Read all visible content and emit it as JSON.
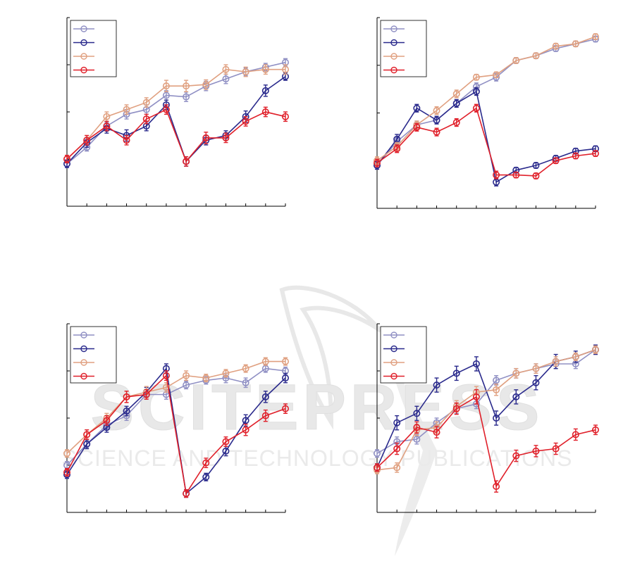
{
  "watermark": {
    "line1": "SCITEPRESS",
    "line2": "SCIENCE AND TECHNOLOGY PUBLICATIONS"
  },
  "colors": {
    "series1": "#9090c4",
    "series2": "#2a2a8c",
    "series3": "#e0a080",
    "series4": "#e0202a",
    "axis": "#000000",
    "watermark": "#e6e6e6"
  },
  "chart_data": [
    {
      "type": "line",
      "panel": "top-left",
      "title": "",
      "xlabel": "",
      "ylabel": "",
      "x": [
        0,
        1,
        2,
        3,
        4,
        5,
        6,
        7,
        8,
        9,
        10,
        11
      ],
      "xlim": [
        0,
        11
      ],
      "ylim": [
        0,
        4
      ],
      "grid": false,
      "legend": "top-left",
      "series": [
        {
          "values": [
            0.9,
            1.25,
            1.7,
            1.95,
            2.05,
            2.35,
            2.32,
            2.55,
            2.7,
            2.85,
            2.95,
            3.05
          ],
          "err": [
            0.08,
            0.08,
            0.08,
            0.1,
            0.1,
            0.1,
            0.1,
            0.1,
            0.1,
            0.08,
            0.08,
            0.08
          ]
        },
        {
          "values": [
            0.9,
            1.35,
            1.65,
            1.5,
            1.7,
            2.15,
            0.95,
            1.4,
            1.5,
            1.9,
            2.45,
            2.75
          ],
          "err": [
            0.08,
            0.1,
            0.1,
            0.12,
            0.1,
            0.1,
            0.1,
            0.1,
            0.1,
            0.12,
            0.12,
            0.08
          ]
        },
        {
          "values": [
            1.0,
            1.4,
            1.9,
            2.05,
            2.2,
            2.55,
            2.55,
            2.58,
            2.9,
            2.85,
            2.9,
            2.9
          ],
          "err": [
            0.08,
            0.1,
            0.1,
            0.1,
            0.1,
            0.12,
            0.12,
            0.1,
            0.1,
            0.1,
            0.1,
            0.1
          ]
        },
        {
          "values": [
            1.0,
            1.4,
            1.7,
            1.4,
            1.85,
            2.05,
            0.95,
            1.45,
            1.45,
            1.8,
            2.0,
            1.9
          ],
          "err": [
            0.08,
            0.1,
            0.1,
            0.1,
            0.1,
            0.1,
            0.1,
            0.12,
            0.1,
            0.1,
            0.1,
            0.1
          ]
        }
      ]
    },
    {
      "type": "line",
      "panel": "top-right",
      "title": "",
      "xlabel": "",
      "ylabel": "",
      "x": [
        0,
        1,
        2,
        3,
        4,
        5,
        6,
        7,
        8,
        9,
        10,
        11
      ],
      "xlim": [
        0,
        11
      ],
      "ylim": [
        0,
        4
      ],
      "grid": false,
      "legend": "top-left",
      "series": [
        {
          "values": [
            0.9,
            1.4,
            1.75,
            1.85,
            2.2,
            2.55,
            2.75,
            3.1,
            3.2,
            3.35,
            3.45,
            3.55
          ],
          "err": [
            0.08,
            0.08,
            0.08,
            0.08,
            0.08,
            0.08,
            0.08,
            0.06,
            0.06,
            0.06,
            0.06,
            0.06
          ]
        },
        {
          "values": [
            0.9,
            1.45,
            2.1,
            1.85,
            2.2,
            2.45,
            0.55,
            0.8,
            0.9,
            1.05,
            1.2,
            1.25
          ],
          "err": [
            0.08,
            0.1,
            0.08,
            0.08,
            0.08,
            0.08,
            0.08,
            0.06,
            0.06,
            0.06,
            0.06,
            0.06
          ]
        },
        {
          "values": [
            1.0,
            1.3,
            1.75,
            2.05,
            2.4,
            2.75,
            2.8,
            3.1,
            3.2,
            3.4,
            3.45,
            3.6
          ],
          "err": [
            0.08,
            0.08,
            0.08,
            0.08,
            0.08,
            0.06,
            0.06,
            0.06,
            0.06,
            0.06,
            0.06,
            0.06
          ]
        },
        {
          "values": [
            0.95,
            1.25,
            1.7,
            1.6,
            1.8,
            2.1,
            0.7,
            0.7,
            0.68,
            1.0,
            1.1,
            1.15
          ],
          "err": [
            0.08,
            0.08,
            0.08,
            0.08,
            0.08,
            0.08,
            0.08,
            0.06,
            0.06,
            0.06,
            0.06,
            0.06
          ]
        }
      ]
    },
    {
      "type": "line",
      "panel": "bottom-left",
      "title": "",
      "xlabel": "",
      "ylabel": "",
      "x": [
        0,
        1,
        2,
        3,
        4,
        5,
        6,
        7,
        8,
        9,
        10,
        11
      ],
      "xlim": [
        0,
        11
      ],
      "ylim": [
        0,
        4
      ],
      "grid": false,
      "legend": "top-left",
      "series": [
        {
          "values": [
            1.0,
            1.45,
            1.85,
            2.05,
            2.5,
            2.5,
            2.7,
            2.8,
            2.85,
            2.75,
            3.05,
            3.0
          ],
          "err": [
            0.08,
            0.08,
            0.08,
            0.1,
            0.1,
            0.1,
            0.08,
            0.08,
            0.1,
            0.1,
            0.08,
            0.08
          ]
        },
        {
          "values": [
            0.8,
            1.45,
            1.8,
            2.15,
            2.55,
            3.05,
            0.4,
            0.75,
            1.3,
            1.95,
            2.45,
            2.85
          ],
          "err": [
            0.08,
            0.1,
            0.1,
            0.1,
            0.1,
            0.1,
            0.08,
            0.08,
            0.1,
            0.12,
            0.12,
            0.1
          ]
        },
        {
          "values": [
            1.25,
            1.65,
            2.0,
            2.45,
            2.55,
            2.65,
            2.9,
            2.85,
            2.95,
            3.05,
            3.2,
            3.2
          ],
          "err": [
            0.08,
            0.1,
            0.1,
            0.12,
            0.12,
            0.1,
            0.1,
            0.08,
            0.08,
            0.08,
            0.08,
            0.08
          ]
        },
        {
          "values": [
            0.85,
            1.65,
            1.95,
            2.45,
            2.5,
            2.9,
            0.4,
            1.05,
            1.5,
            1.75,
            2.05,
            2.2
          ],
          "err": [
            0.08,
            0.1,
            0.1,
            0.12,
            0.1,
            0.1,
            0.08,
            0.1,
            0.1,
            0.12,
            0.12,
            0.1
          ]
        }
      ]
    },
    {
      "type": "line",
      "panel": "bottom-right",
      "title": "",
      "xlabel": "",
      "ylabel": "",
      "x": [
        0,
        1,
        2,
        3,
        4,
        5,
        6,
        7,
        8,
        9,
        10,
        11
      ],
      "xlim": [
        0,
        11
      ],
      "ylim": [
        0,
        4
      ],
      "grid": false,
      "legend": "top-left",
      "series": [
        {
          "values": [
            1.25,
            1.5,
            1.55,
            1.9,
            2.2,
            2.3,
            2.8,
            2.95,
            3.05,
            3.15,
            3.15,
            3.45
          ],
          "err": [
            0.08,
            0.1,
            0.1,
            0.1,
            0.1,
            0.1,
            0.1,
            0.1,
            0.1,
            0.1,
            0.1,
            0.08
          ]
        },
        {
          "values": [
            0.95,
            1.9,
            2.1,
            2.7,
            2.95,
            3.15,
            2.0,
            2.45,
            2.75,
            3.2,
            3.3,
            3.45
          ],
          "err": [
            0.08,
            0.15,
            0.15,
            0.15,
            0.15,
            0.15,
            0.15,
            0.15,
            0.15,
            0.15,
            0.12,
            0.1
          ]
        },
        {
          "values": [
            0.9,
            0.95,
            1.75,
            1.8,
            2.25,
            2.55,
            2.6,
            2.95,
            3.05,
            3.2,
            3.3,
            3.45
          ],
          "err": [
            0.08,
            0.1,
            0.12,
            0.12,
            0.12,
            0.12,
            0.12,
            0.1,
            0.1,
            0.1,
            0.08,
            0.08
          ]
        },
        {
          "values": [
            0.95,
            1.35,
            1.8,
            1.7,
            2.2,
            2.45,
            0.55,
            1.2,
            1.3,
            1.35,
            1.65,
            1.75
          ],
          "err": [
            0.08,
            0.12,
            0.12,
            0.12,
            0.12,
            0.15,
            0.12,
            0.12,
            0.12,
            0.12,
            0.12,
            0.1
          ]
        }
      ]
    }
  ]
}
